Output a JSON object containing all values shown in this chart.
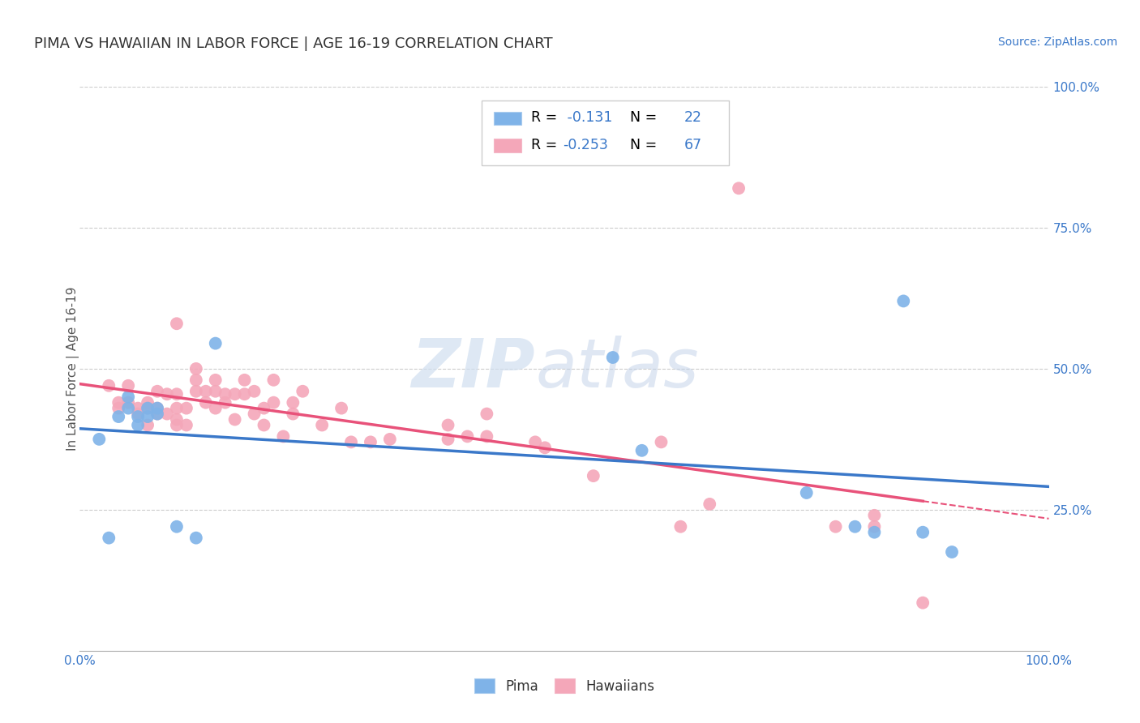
{
  "title": "PIMA VS HAWAIIAN IN LABOR FORCE | AGE 16-19 CORRELATION CHART",
  "source_text": "Source: ZipAtlas.com",
  "ylabel": "In Labor Force | Age 16-19",
  "xlim": [
    0.0,
    1.0
  ],
  "ylim": [
    0.0,
    1.0
  ],
  "ytick_positions": [
    0.25,
    0.5,
    0.75,
    1.0
  ],
  "ytick_labels": [
    "25.0%",
    "50.0%",
    "75.0%",
    "100.0%"
  ],
  "xtick_positions": [
    0.0,
    1.0
  ],
  "xtick_labels": [
    "0.0%",
    "100.0%"
  ],
  "grid_color": "#cccccc",
  "background_color": "#ffffff",
  "watermark_zip": "ZIP",
  "watermark_atlas": "atlas",
  "pima_color": "#7fb3e8",
  "hawaiian_color": "#f4a7b9",
  "pima_line_color": "#3a78c9",
  "hawaiian_line_color": "#e8527a",
  "pima_R": -0.131,
  "pima_N": 22,
  "hawaiian_R": -0.253,
  "hawaiian_N": 67,
  "legend_label_pima": "Pima",
  "legend_label_hawaiian": "Hawaiians",
  "value_color": "#3a78c9",
  "label_color": "#333333",
  "tick_color": "#3a78c9",
  "pima_x": [
    0.02,
    0.03,
    0.04,
    0.05,
    0.05,
    0.06,
    0.06,
    0.07,
    0.07,
    0.08,
    0.08,
    0.1,
    0.12,
    0.14,
    0.55,
    0.58,
    0.75,
    0.8,
    0.82,
    0.85,
    0.87,
    0.9
  ],
  "pima_y": [
    0.375,
    0.2,
    0.415,
    0.43,
    0.45,
    0.4,
    0.415,
    0.415,
    0.43,
    0.42,
    0.43,
    0.22,
    0.2,
    0.545,
    0.52,
    0.355,
    0.28,
    0.22,
    0.21,
    0.62,
    0.21,
    0.175
  ],
  "hawaiian_x": [
    0.03,
    0.04,
    0.04,
    0.05,
    0.05,
    0.06,
    0.06,
    0.07,
    0.07,
    0.07,
    0.08,
    0.08,
    0.08,
    0.09,
    0.09,
    0.1,
    0.1,
    0.1,
    0.1,
    0.1,
    0.11,
    0.11,
    0.12,
    0.12,
    0.12,
    0.13,
    0.13,
    0.14,
    0.14,
    0.14,
    0.15,
    0.15,
    0.16,
    0.16,
    0.17,
    0.17,
    0.18,
    0.18,
    0.19,
    0.19,
    0.2,
    0.2,
    0.21,
    0.22,
    0.22,
    0.23,
    0.25,
    0.27,
    0.28,
    0.3,
    0.32,
    0.38,
    0.38,
    0.4,
    0.42,
    0.42,
    0.47,
    0.48,
    0.53,
    0.6,
    0.62,
    0.65,
    0.68,
    0.78,
    0.82,
    0.82,
    0.87
  ],
  "hawaiian_y": [
    0.47,
    0.43,
    0.44,
    0.44,
    0.47,
    0.42,
    0.43,
    0.4,
    0.43,
    0.44,
    0.42,
    0.43,
    0.46,
    0.42,
    0.455,
    0.4,
    0.41,
    0.43,
    0.455,
    0.58,
    0.4,
    0.43,
    0.46,
    0.48,
    0.5,
    0.44,
    0.46,
    0.43,
    0.46,
    0.48,
    0.44,
    0.455,
    0.41,
    0.455,
    0.455,
    0.48,
    0.42,
    0.46,
    0.4,
    0.43,
    0.44,
    0.48,
    0.38,
    0.42,
    0.44,
    0.46,
    0.4,
    0.43,
    0.37,
    0.37,
    0.375,
    0.375,
    0.4,
    0.38,
    0.38,
    0.42,
    0.37,
    0.36,
    0.31,
    0.37,
    0.22,
    0.26,
    0.82,
    0.22,
    0.22,
    0.24,
    0.085
  ]
}
